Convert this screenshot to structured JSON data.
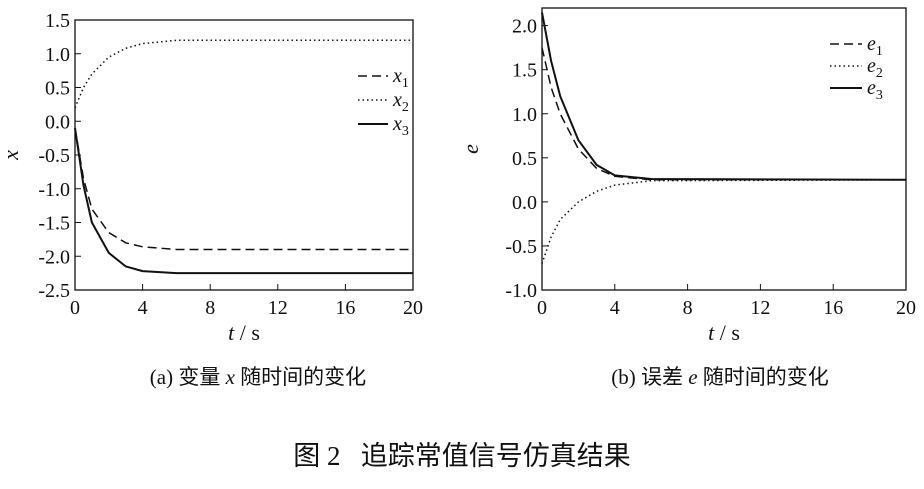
{
  "figure_caption": "图 2   追踪常值信号仿真结果",
  "chart_data": [
    {
      "type": "line",
      "caption": "(a) 变量 x 随时间的变化",
      "xlabel": "t / s",
      "ylabel": "x",
      "xlim": [
        0,
        20
      ],
      "ylim": [
        -2.5,
        1.5
      ],
      "x_ticks": [
        0,
        4,
        8,
        12,
        16,
        20
      ],
      "y_ticks": [
        1.5,
        1.0,
        0.5,
        0.0,
        -0.5,
        -1.0,
        -1.5,
        -2.0,
        -2.5
      ],
      "legend_position": "right",
      "series": [
        {
          "name": "x1",
          "style": "dash",
          "points": [
            [
              0,
              -0.1
            ],
            [
              0.5,
              -0.85
            ],
            [
              1,
              -1.3
            ],
            [
              2,
              -1.65
            ],
            [
              3,
              -1.8
            ],
            [
              4,
              -1.86
            ],
            [
              6,
              -1.9
            ],
            [
              20,
              -1.9
            ]
          ]
        },
        {
          "name": "x2",
          "style": "dot",
          "points": [
            [
              0,
              0.2
            ],
            [
              0.5,
              0.5
            ],
            [
              1,
              0.7
            ],
            [
              2,
              0.95
            ],
            [
              3,
              1.08
            ],
            [
              4,
              1.15
            ],
            [
              6,
              1.2
            ],
            [
              20,
              1.2
            ]
          ]
        },
        {
          "name": "x3",
          "style": "solid",
          "points": [
            [
              0,
              -0.1
            ],
            [
              0.5,
              -0.95
            ],
            [
              1,
              -1.5
            ],
            [
              2,
              -1.95
            ],
            [
              3,
              -2.15
            ],
            [
              4,
              -2.22
            ],
            [
              6,
              -2.25
            ],
            [
              20,
              -2.25
            ]
          ]
        }
      ]
    },
    {
      "type": "line",
      "caption": "(b) 误差 e 随时间的变化",
      "xlabel": "t / s",
      "ylabel": "e",
      "xlim": [
        0,
        20
      ],
      "ylim": [
        -1.0,
        2.2
      ],
      "x_ticks": [
        0,
        4,
        8,
        12,
        16,
        20
      ],
      "y_ticks": [
        2.0,
        1.5,
        1.0,
        0.5,
        0.0,
        -0.5,
        -1.0
      ],
      "legend_position": "top-right",
      "series": [
        {
          "name": "e1",
          "style": "dash",
          "points": [
            [
              0,
              1.75
            ],
            [
              0.5,
              1.3
            ],
            [
              1,
              1.0
            ],
            [
              2,
              0.6
            ],
            [
              3,
              0.38
            ],
            [
              4,
              0.29
            ],
            [
              6,
              0.25
            ],
            [
              20,
              0.25
            ]
          ]
        },
        {
          "name": "e2",
          "style": "dot",
          "points": [
            [
              0,
              -0.7
            ],
            [
              0.5,
              -0.4
            ],
            [
              1,
              -0.2
            ],
            [
              2,
              0.0
            ],
            [
              3,
              0.12
            ],
            [
              4,
              0.19
            ],
            [
              6,
              0.24
            ],
            [
              20,
              0.25
            ]
          ]
        },
        {
          "name": "e3",
          "style": "solid",
          "points": [
            [
              0,
              2.15
            ],
            [
              0.5,
              1.6
            ],
            [
              1,
              1.2
            ],
            [
              2,
              0.7
            ],
            [
              3,
              0.42
            ],
            [
              4,
              0.3
            ],
            [
              6,
              0.26
            ],
            [
              20,
              0.25
            ]
          ]
        }
      ]
    }
  ]
}
